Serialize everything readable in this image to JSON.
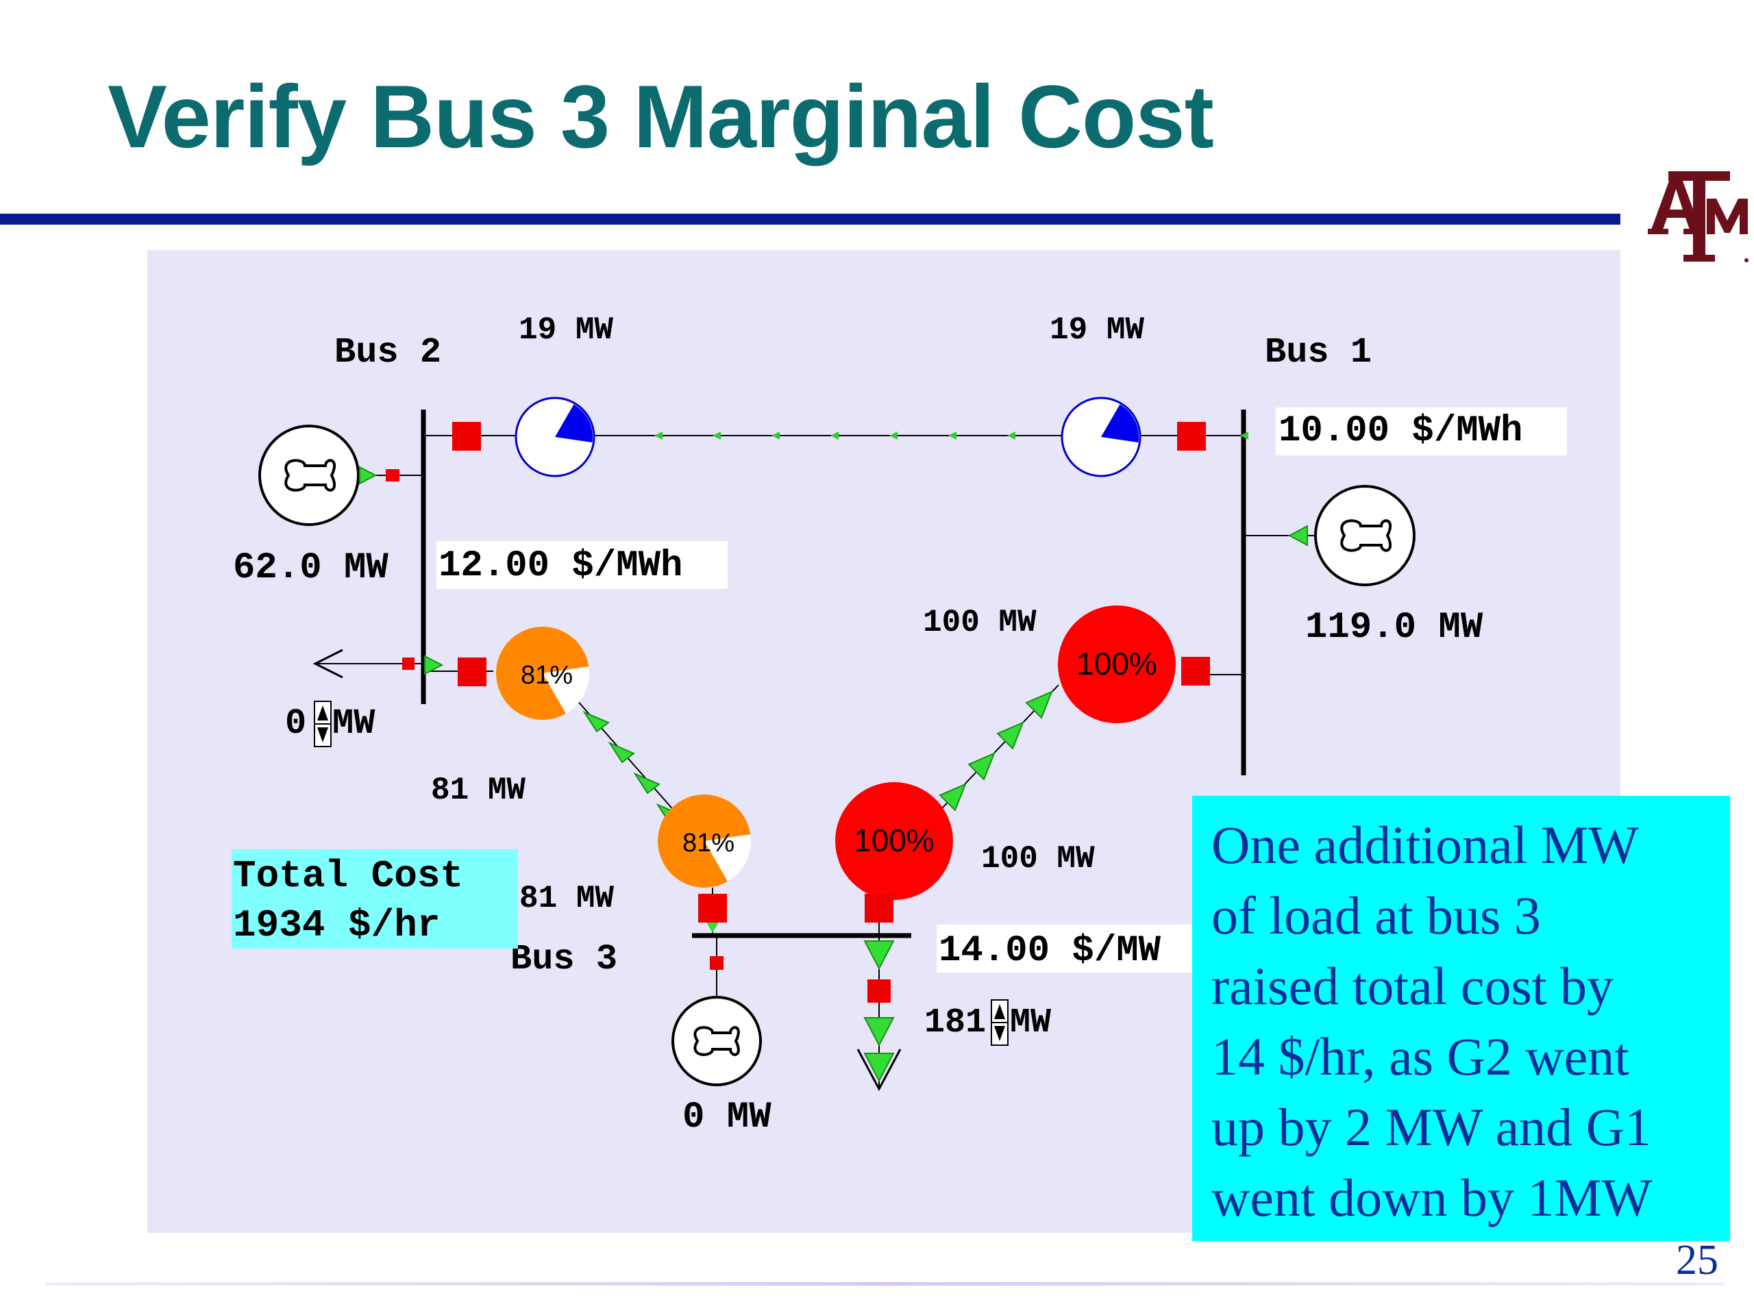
{
  "slide": {
    "title": "Verify Bus 3 Marginal Cost",
    "page_number": "25",
    "logo_text": "ATM"
  },
  "diagram": {
    "buses": {
      "bus1": {
        "label": "Bus 1",
        "price": "10.00 $/MWh"
      },
      "bus2": {
        "label": "Bus 2",
        "price": "12.00 $/MWh"
      },
      "bus3": {
        "label": "Bus 3",
        "price": "14.00 $/MW"
      }
    },
    "generators": {
      "gen1_output": "119.0 MW",
      "gen2_output": "62.0 MW",
      "gen3_output": "0 MW"
    },
    "lines": {
      "line_1_2": {
        "flow_bus2_end": "19 MW",
        "flow_bus1_end": "19 MW",
        "loading_pct": 19
      },
      "line_1_3": {
        "flow_bus1_end": "100 MW",
        "flow_bus3_end": "100 MW",
        "loading_label_1": "100%",
        "loading_label_3": "100%",
        "loading_pct": 100
      },
      "line_2_3": {
        "flow_bus2_end": "81 MW",
        "flow_bus3_end": "81 MW",
        "loading_label_2": "81%",
        "loading_label_3": "81%",
        "loading_pct": 81
      }
    },
    "loads": {
      "bus2_load_value": "0",
      "bus2_load_unit": "MW",
      "bus3_load_value": "181",
      "bus3_load_unit": "MW"
    },
    "total_cost": {
      "line1": "Total Cost",
      "line2": "1934 $/hr"
    }
  },
  "callout": {
    "lines": [
      "One additional MW",
      "of load at bus 3",
      "raised total cost by",
      "14 $/hr, as G2 went",
      "up by 2 MW and G1",
      "went down by 1MW"
    ]
  },
  "colors": {
    "title": "#0b6b6e",
    "rule": "#0a1a8c",
    "panel": "#e6e6f8",
    "callout_bg": "#00ffff",
    "callout_text": "#0b2c99",
    "overload": "#ff0000",
    "warning": "#ff8800",
    "flow_arrow": "#33dd33",
    "breaker": "#ee0000",
    "logo": "#6b0f1a"
  }
}
